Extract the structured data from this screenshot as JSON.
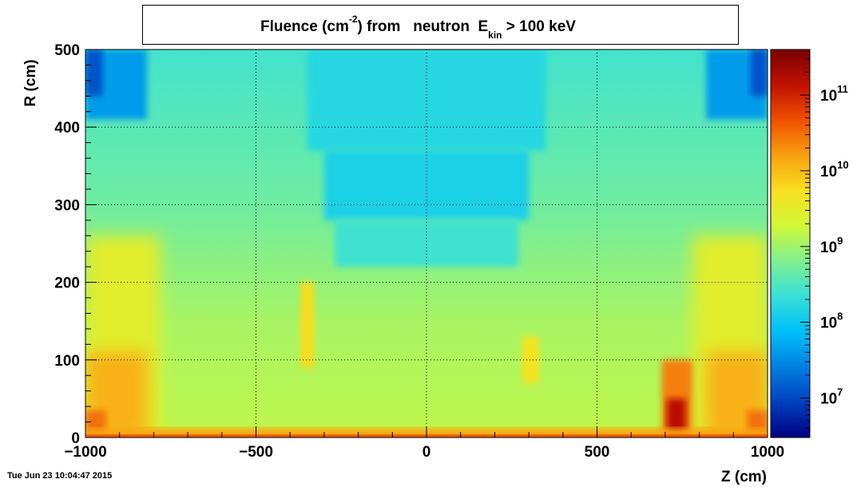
{
  "chart_data": {
    "type": "heatmap",
    "title": {
      "main": "Fluence (cm",
      "exponent": "-2",
      "middle": ") from   neutron  E",
      "subscript": "kin",
      "end": " > 100 keV"
    },
    "xlabel": "Z (cm)",
    "ylabel": "R (cm)",
    "xlim": [
      -1000,
      1000
    ],
    "ylim": [
      0,
      500
    ],
    "x_ticks": [
      {
        "value": -1000,
        "label": "−1000"
      },
      {
        "value": -500,
        "label": "−500"
      },
      {
        "value": 0,
        "label": "0"
      },
      {
        "value": 500,
        "label": "500"
      },
      {
        "value": 1000,
        "label": "1000"
      }
    ],
    "y_ticks": [
      {
        "value": 0,
        "label": "0"
      },
      {
        "value": 100,
        "label": "100"
      },
      {
        "value": 200,
        "label": "200"
      },
      {
        "value": 300,
        "label": "300"
      },
      {
        "value": 400,
        "label": "400"
      },
      {
        "value": 500,
        "label": "500"
      }
    ],
    "grid": true,
    "color_scale": "log",
    "zlim": [
      3000000.0,
      400000000000.0
    ],
    "colorbar_ticks": [
      {
        "value": 10000000.0,
        "base": "10",
        "exponent": "7"
      },
      {
        "value": 100000000.0,
        "base": "10",
        "exponent": "8"
      },
      {
        "value": 1000000000.0,
        "base": "10",
        "exponent": "9"
      },
      {
        "value": 10000000000.0,
        "base": "10",
        "exponent": "10"
      },
      {
        "value": 100000000000.0,
        "base": "10",
        "exponent": "11"
      }
    ],
    "palette": [
      "#00007f",
      "#0040c0",
      "#0080e0",
      "#00c0f8",
      "#38e0d8",
      "#80f090",
      "#d0f838",
      "#f8e020",
      "#f8a010",
      "#f05000",
      "#c01000",
      "#780000"
    ]
  },
  "timestamp": "Tue Jun 23 10:04:47 2015"
}
